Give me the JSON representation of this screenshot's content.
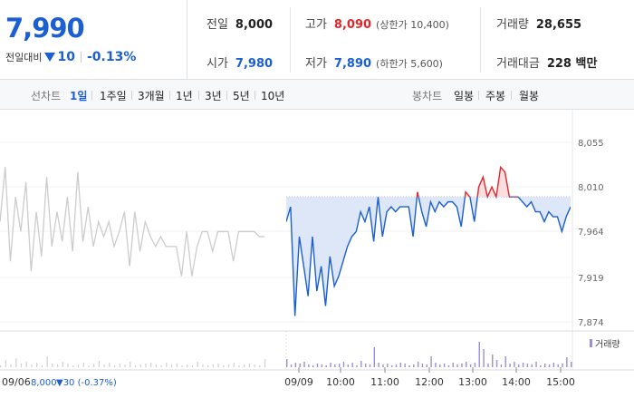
{
  "quote": {
    "price": "7,990",
    "change_label": "전일대비",
    "change_value": "10",
    "change_rate": "-0.13%",
    "prev_close_label": "전일",
    "prev_close": "8,000",
    "open_label": "시가",
    "open": "7,980",
    "high_label": "고가",
    "high": "8,090",
    "upper_limit": "(상한가 10,400)",
    "low_label": "저가",
    "low": "7,890",
    "lower_limit": "(하한가 5,600)",
    "volume_label": "거래량",
    "volume": "28,655",
    "amount_label": "거래대금",
    "amount": "228 백만"
  },
  "tabs": {
    "line_label": "선차트",
    "line_items": [
      "1일",
      "1주일",
      "3개월",
      "1년",
      "3년",
      "5년",
      "10년"
    ],
    "line_active": 0,
    "candle_label": "봉차트",
    "candle_items": [
      "일봉",
      "주봉",
      "월봉"
    ]
  },
  "colors": {
    "up": "#e0282c",
    "down": "#1b5fd1",
    "prev_line": "#cccccc"
  },
  "chart_data": {
    "type": "line",
    "y_ticks": [
      "8,055",
      "8,010",
      "7,964",
      "7,919",
      "7,874"
    ],
    "ylim": [
      7874,
      8055
    ],
    "x_ticks": [
      "09/09",
      "10:00",
      "11:00",
      "12:00",
      "13:00",
      "14:00",
      "15:00"
    ],
    "base_price": 8000,
    "prev_day_label": "09/06",
    "prev_day_close": "8,000",
    "prev_day_change": "▼30 (-0.37%)",
    "volume_legend": "거래량",
    "series": [
      {
        "name": "prev",
        "values": [
          7975,
          8030,
          7935,
          8000,
          7965,
          8015,
          7925,
          7985,
          7940,
          8020,
          7950,
          7985,
          7955,
          8000,
          7945,
          8025,
          7955,
          7990,
          7950,
          7975,
          7960,
          7975,
          7950,
          7965,
          7985,
          7930,
          7985,
          7945,
          7975,
          7960,
          7950,
          7960,
          7950,
          7950,
          7950,
          7920,
          7965,
          7920,
          7950,
          7965,
          7965,
          7945,
          7965,
          7965,
          7965,
          7935,
          7965,
          7965,
          7965,
          7965,
          7960,
          7960
        ]
      },
      {
        "name": "today",
        "values": [
          7975,
          7990,
          7880,
          7960,
          7930,
          7900,
          7960,
          7905,
          7930,
          7890,
          7940,
          7910,
          7920,
          7935,
          7950,
          7960,
          7965,
          7985,
          7975,
          7990,
          7955,
          8000,
          7960,
          7985,
          7990,
          7985,
          7990,
          7990,
          7990,
          7960,
          8005,
          7985,
          7970,
          7995,
          7985,
          7995,
          7990,
          7995,
          7995,
          7990,
          7970,
          8005,
          8000,
          7975,
          8010,
          8020,
          8000,
          8010,
          8000,
          8030,
          8025,
          8000,
          8000,
          8000,
          7995,
          7990,
          7995,
          7985,
          7985,
          7975,
          7985,
          7980,
          7980,
          7965,
          7980,
          7990
        ]
      }
    ],
    "volume": {
      "prev": [
        2,
        8,
        3,
        10,
        4,
        6,
        3,
        5,
        2,
        12,
        4,
        3,
        6,
        4,
        2,
        3,
        5,
        2,
        4,
        7,
        3,
        5,
        2,
        4,
        3,
        6,
        2,
        3,
        4,
        5,
        3,
        2,
        5,
        3,
        4,
        2,
        3,
        2,
        6,
        3,
        2,
        3,
        4,
        2,
        3,
        5,
        2,
        3,
        4,
        3,
        2,
        9
      ],
      "today": [
        9,
        3,
        5,
        4,
        6,
        3,
        2,
        4,
        3,
        2,
        5,
        3,
        4,
        6,
        3,
        5,
        2,
        7,
        4,
        3,
        22,
        5,
        3,
        4,
        2,
        3,
        5,
        4,
        2,
        3,
        6,
        4,
        3,
        12,
        5,
        3,
        4,
        2,
        5,
        3,
        4,
        6,
        3,
        5,
        28,
        20,
        4,
        14,
        8,
        3,
        12,
        4,
        6,
        3,
        5,
        4,
        3,
        6,
        2,
        4,
        3,
        5,
        3,
        4,
        11,
        6
      ]
    }
  }
}
